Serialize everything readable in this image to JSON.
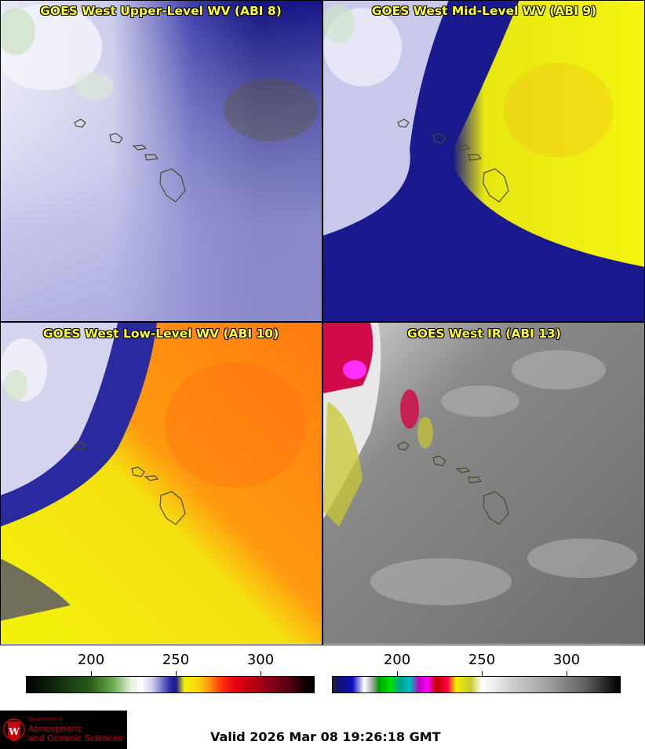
{
  "panels": [
    {
      "title": "GOES West Upper-Level WV (ABI 8)"
    },
    {
      "title": "GOES West Mid-Level WV (ABI 9)"
    },
    {
      "title": "GOES West Low-Level WV (ABI 10)"
    },
    {
      "title": "GOES West IR (ABI 13)"
    }
  ],
  "colorbars": {
    "wv_ticks": [
      "200",
      "250",
      "300"
    ],
    "ir_ticks": [
      "200",
      "250",
      "300"
    ]
  },
  "logo": {
    "line1": "Department of",
    "line2": "Atmospheric",
    "line3": "and Oceanic Sciences"
  },
  "valid_time": "Valid 2026 Mar 08 19:26:18 GMT",
  "colors": {
    "title_text": "#ffff33",
    "wv_dry": "#1a1a8a",
    "wv_mid_yellow": "#f2f20a",
    "wv_low_orange": "#ff8a10",
    "ir_gray": "#707070"
  }
}
